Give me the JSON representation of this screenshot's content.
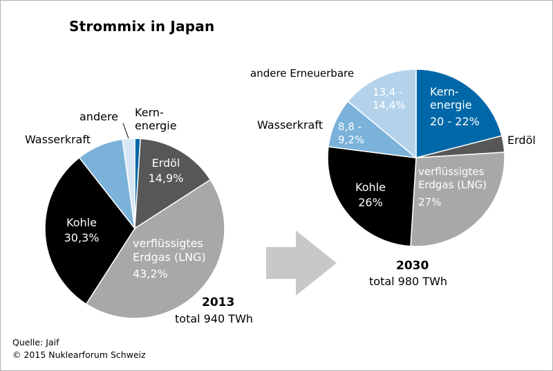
{
  "title": "Strommix in Japan",
  "colors": {
    "kernenergie": "#0068a8",
    "erdoel": "#575757",
    "erdgas": "#a8a8a8",
    "kohle": "#000000",
    "wasserkraft": "#7ab2da",
    "andere": "#d6e6f4",
    "andere_erneuerbare": "#b4d3eb",
    "arrow": "#c8c8c8"
  },
  "chart_data": [
    {
      "type": "pie",
      "year": "2013",
      "total": "total 940 TWh",
      "slices": [
        {
          "key": "kernenergie",
          "label": "Kern-\nenergie",
          "value": 1.0,
          "value_label": ""
        },
        {
          "key": "erdoel",
          "label": "Erdöl",
          "value": 14.9,
          "value_label": "14,9%"
        },
        {
          "key": "erdgas",
          "label": "verflüssigtes\nErdgas (LNG)",
          "value": 43.2,
          "value_label": "43,2%"
        },
        {
          "key": "kohle",
          "label": "Kohle",
          "value": 30.3,
          "value_label": "30,3%"
        },
        {
          "key": "wasserkraft",
          "label": "Wasserkraft",
          "value": 8.4,
          "value_label": ""
        },
        {
          "key": "andere",
          "label": "andere",
          "value": 2.2,
          "value_label": ""
        }
      ]
    },
    {
      "type": "pie",
      "year": "2030",
      "total": "total 980 TWh",
      "slices": [
        {
          "key": "kernenergie",
          "label": "Kern-\nenergie",
          "value": 21,
          "value_label": "20 - 22%"
        },
        {
          "key": "erdoel",
          "label": "Erdöl",
          "value": 3,
          "value_label": ""
        },
        {
          "key": "erdgas",
          "label": "verflüssigtes\nErdgas (LNG)",
          "value": 27,
          "value_label": "27%"
        },
        {
          "key": "kohle",
          "label": "Kohle",
          "value": 26,
          "value_label": "26%"
        },
        {
          "key": "wasserkraft",
          "label": "Wasserkraft",
          "value": 9,
          "value_label": "8,8 -\n9,2%"
        },
        {
          "key": "andere_erneuerbare",
          "label": "andere Erneuerbare",
          "value": 14,
          "value_label": "13,4 -\n14,4%"
        }
      ]
    }
  ],
  "footer": {
    "source": "Quelle: Jaif",
    "copyright": "© 2015 Nuklearforum Schweiz"
  }
}
